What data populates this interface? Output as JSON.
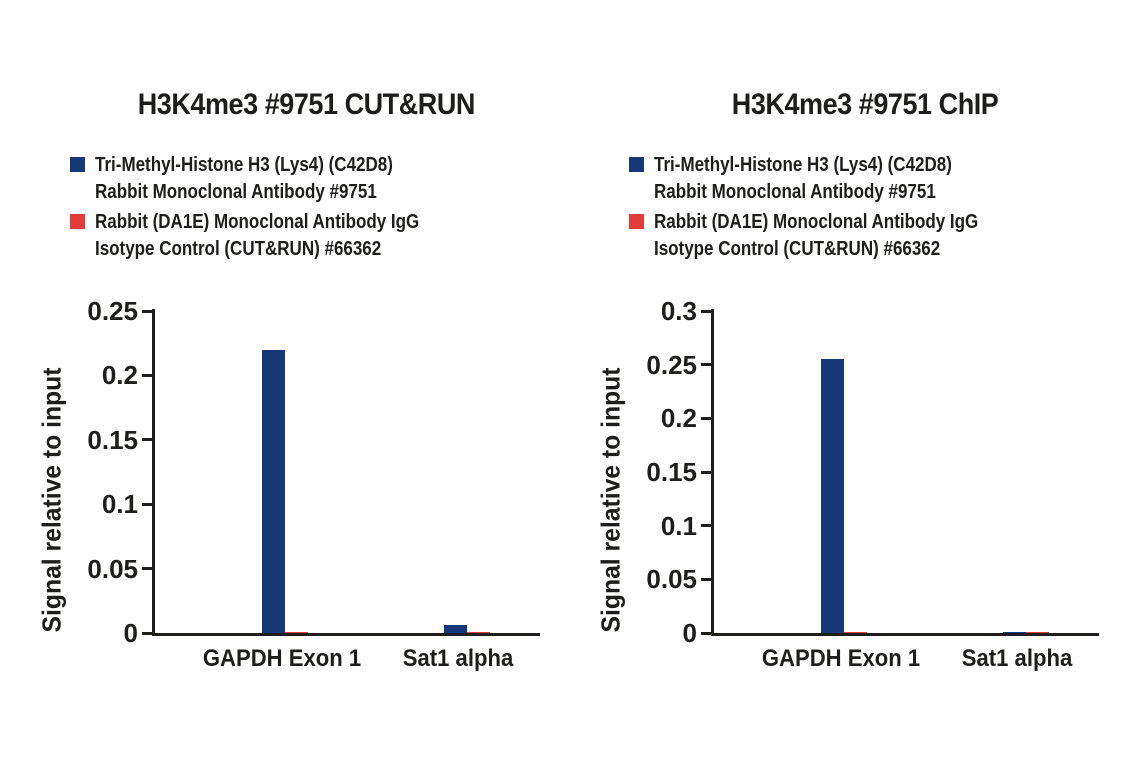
{
  "page": {
    "background": "#ffffff",
    "text_color": "#1d1d1b"
  },
  "legend": {
    "items": [
      {
        "color": "#173877",
        "line1": "Tri-Methyl-Histone H3 (Lys4) (C42D8)",
        "line2": "Rabbit Monoclonal Antibody #9751"
      },
      {
        "color": "#e23b39",
        "line1": "Rabbit (DA1E) Monoclonal Antibody IgG",
        "line2": "Isotype Control (CUT&RUN) #66362"
      }
    ]
  },
  "chart_data": [
    {
      "type": "bar",
      "title": "H3K4me3 #9751 CUT&RUN",
      "xlabel": "",
      "ylabel": "Signal relative to input",
      "categories": [
        "GAPDH Exon 1",
        "Sat1 alpha"
      ],
      "series": [
        {
          "name": "Tri-Methyl-Histone H3 (Lys4) (C42D8) Rabbit Monoclonal Antibody #9751",
          "color": "#173877",
          "values": [
            0.22,
            0.006
          ]
        },
        {
          "name": "Rabbit (DA1E) Monoclonal Antibody IgG Isotype Control (CUT&RUN) #66362",
          "color": "#e23b39",
          "values": [
            0.001,
            0.0005
          ]
        }
      ],
      "ylim": [
        0,
        0.25
      ],
      "yticks": [
        {
          "value": 0,
          "label": "0"
        },
        {
          "value": 0.05,
          "label": "0.05"
        },
        {
          "value": 0.1,
          "label": "0.1"
        },
        {
          "value": 0.15,
          "label": "0.15"
        },
        {
          "value": 0.2,
          "label": "0.2"
        },
        {
          "value": 0.25,
          "label": "0.25"
        }
      ],
      "grid": false,
      "legend_position": "above"
    },
    {
      "type": "bar",
      "title": "H3K4me3 #9751 ChIP",
      "xlabel": "",
      "ylabel": "Signal relative to input",
      "categories": [
        "GAPDH Exon 1",
        "Sat1 alpha"
      ],
      "series": [
        {
          "name": "Tri-Methyl-Histone H3 (Lys4) (C42D8) Rabbit Monoclonal Antibody #9751",
          "color": "#173877",
          "values": [
            0.255,
            0.001
          ]
        },
        {
          "name": "Rabbit (DA1E) Monoclonal Antibody IgG Isotype Control (CUT&RUN) #66362",
          "color": "#e23b39",
          "values": [
            0.001,
            0.0005
          ]
        }
      ],
      "ylim": [
        0,
        0.3
      ],
      "yticks": [
        {
          "value": 0,
          "label": "0"
        },
        {
          "value": 0.05,
          "label": "0.05"
        },
        {
          "value": 0.1,
          "label": "0.1"
        },
        {
          "value": 0.15,
          "label": "0.15"
        },
        {
          "value": 0.2,
          "label": "0.2"
        },
        {
          "value": 0.25,
          "label": "0.25"
        },
        {
          "value": 0.3,
          "label": "0.3"
        }
      ],
      "grid": false,
      "legend_position": "above"
    }
  ]
}
